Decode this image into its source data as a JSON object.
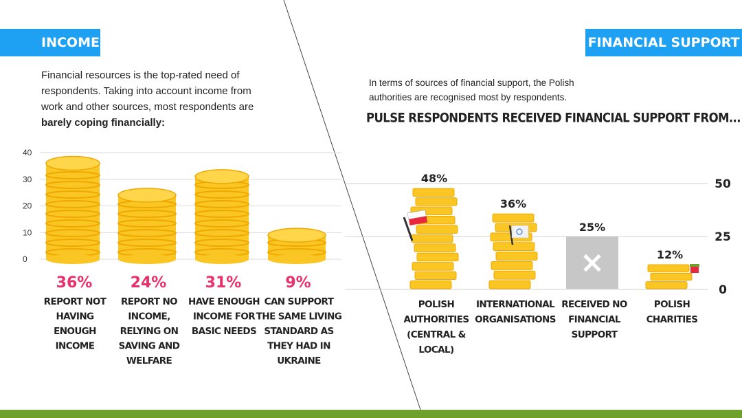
{
  "left_panel": {
    "tag": "INCOME",
    "intro_plain": "Financial resources is the top-rated need of respondents. Taking into account income from work and other sources, most respondents are",
    "intro_bold": "barely coping financially:"
  },
  "right_panel": {
    "tag": "FINANCIAL SUPPORT",
    "intro": "In terms of sources of financial support, the Polish authorities are recognised most by respondents.",
    "title": "PULSE RESPONDENTS RECEIVED FINANCIAL SUPPORT FROM..."
  },
  "icons": [
    "coin-stack-icon",
    "polish-flag-icon",
    "un-flag-icon",
    "cross-icon",
    "gift-icon"
  ],
  "colors": {
    "accent_blue": "#1ea1f2",
    "coin": "#f9c623",
    "coin_dark": "#f0a800",
    "pink": "#e8306b",
    "grey": "#c7c7c7",
    "green": "#6ea12b"
  },
  "chart_data": [
    {
      "type": "bar",
      "yticks": [
        "0",
        "10",
        "20",
        "30",
        "40"
      ],
      "ylim": [
        0,
        40
      ],
      "values": [
        36,
        24,
        31,
        9
      ],
      "value_labels": [
        "36%",
        "24%",
        "31%",
        "9%"
      ],
      "categories": [
        [
          "REPORT NOT",
          "HAVING",
          "ENOUGH",
          "INCOME"
        ],
        [
          "REPORT NO",
          "INCOME,",
          "RELYING ON",
          "SAVING AND",
          "WELFARE"
        ],
        [
          "HAVE ENOUGH",
          "INCOME FOR",
          "BASIC NEEDS"
        ],
        [
          "CAN SUPPORT",
          "THE SAME LIVING",
          "STANDARD AS",
          "THEY HAD IN",
          "UKRAINE"
        ]
      ]
    },
    {
      "type": "bar",
      "yticks": [
        "0",
        "25",
        "50"
      ],
      "ylim": [
        0,
        50
      ],
      "values": [
        48,
        36,
        25,
        12
      ],
      "value_labels": [
        "48%",
        "36%",
        "25%",
        "12%"
      ],
      "categories": [
        [
          "POLISH",
          "AUTHORITIES",
          "(CENTRAL &",
          "LOCAL)"
        ],
        [
          "INTERNATIONAL",
          "ORGANISATIONS"
        ],
        [
          "RECEIVED NO",
          "FINANCIAL",
          "SUPPORT"
        ],
        [
          "POLISH",
          "CHARITIES"
        ]
      ]
    }
  ]
}
